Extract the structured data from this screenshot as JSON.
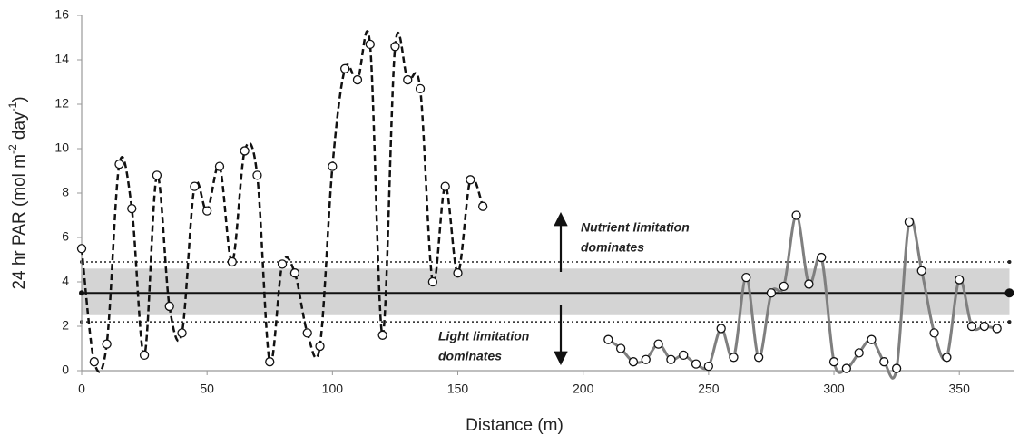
{
  "chart_data": {
    "type": "line",
    "x_label": "Distance (m)",
    "y_label_parts": [
      "24 hr PAR (mol m",
      "-2",
      " day",
      "-1",
      ")"
    ],
    "xlim": [
      0,
      372
    ],
    "ylim": [
      0,
      16
    ],
    "xticks": [
      0,
      50,
      100,
      150,
      200,
      250,
      300,
      350
    ],
    "yticks": [
      0,
      2,
      4,
      6,
      8,
      10,
      12,
      14,
      16
    ],
    "grid": false,
    "reference": {
      "mean": 3.5,
      "band": [
        2.5,
        4.6
      ],
      "limits": [
        2.2,
        4.9
      ],
      "x": [
        0,
        370
      ]
    },
    "annotations": [
      {
        "lines": [
          "Nutrient limitation",
          "dominates"
        ]
      },
      {
        "lines": [
          "Light limitation",
          "dominates"
        ]
      }
    ],
    "series": [
      {
        "color": "#111111",
        "dash": true,
        "x": [
          0,
          5,
          10,
          15,
          20,
          25,
          30,
          35,
          40,
          45,
          50,
          55,
          60,
          65,
          70,
          75,
          80,
          85,
          90,
          95,
          100,
          105,
          110,
          115,
          120,
          125,
          130,
          135,
          140,
          145,
          150,
          155,
          160
        ],
        "values": [
          5.5,
          0.4,
          1.2,
          9.3,
          7.3,
          0.7,
          8.8,
          2.9,
          1.7,
          8.3,
          7.2,
          9.2,
          4.9,
          9.9,
          8.8,
          0.4,
          4.8,
          4.4,
          1.7,
          1.1,
          9.2,
          13.6,
          13.1,
          14.7,
          1.6,
          14.6,
          13.1,
          12.7,
          4.0,
          8.3,
          4.4,
          8.6,
          7.4
        ]
      },
      {
        "color": "#7f7f7f",
        "dash": false,
        "x": [
          210,
          215,
          220,
          225,
          230,
          235,
          240,
          245,
          250,
          255,
          260,
          265,
          270,
          275,
          280,
          285,
          290,
          295,
          300,
          305,
          310,
          315,
          320,
          325,
          330,
          335,
          340,
          345,
          350,
          355,
          360,
          365
        ],
        "values": [
          1.4,
          1.0,
          0.4,
          0.5,
          1.2,
          0.5,
          0.7,
          0.3,
          0.2,
          1.9,
          0.6,
          4.2,
          0.6,
          3.5,
          3.8,
          7.0,
          3.9,
          5.1,
          0.4,
          0.1,
          0.8,
          1.4,
          0.4,
          0.1,
          6.7,
          4.5,
          1.7,
          0.6,
          4.1,
          2.0,
          2.0,
          1.9
        ]
      }
    ]
  }
}
